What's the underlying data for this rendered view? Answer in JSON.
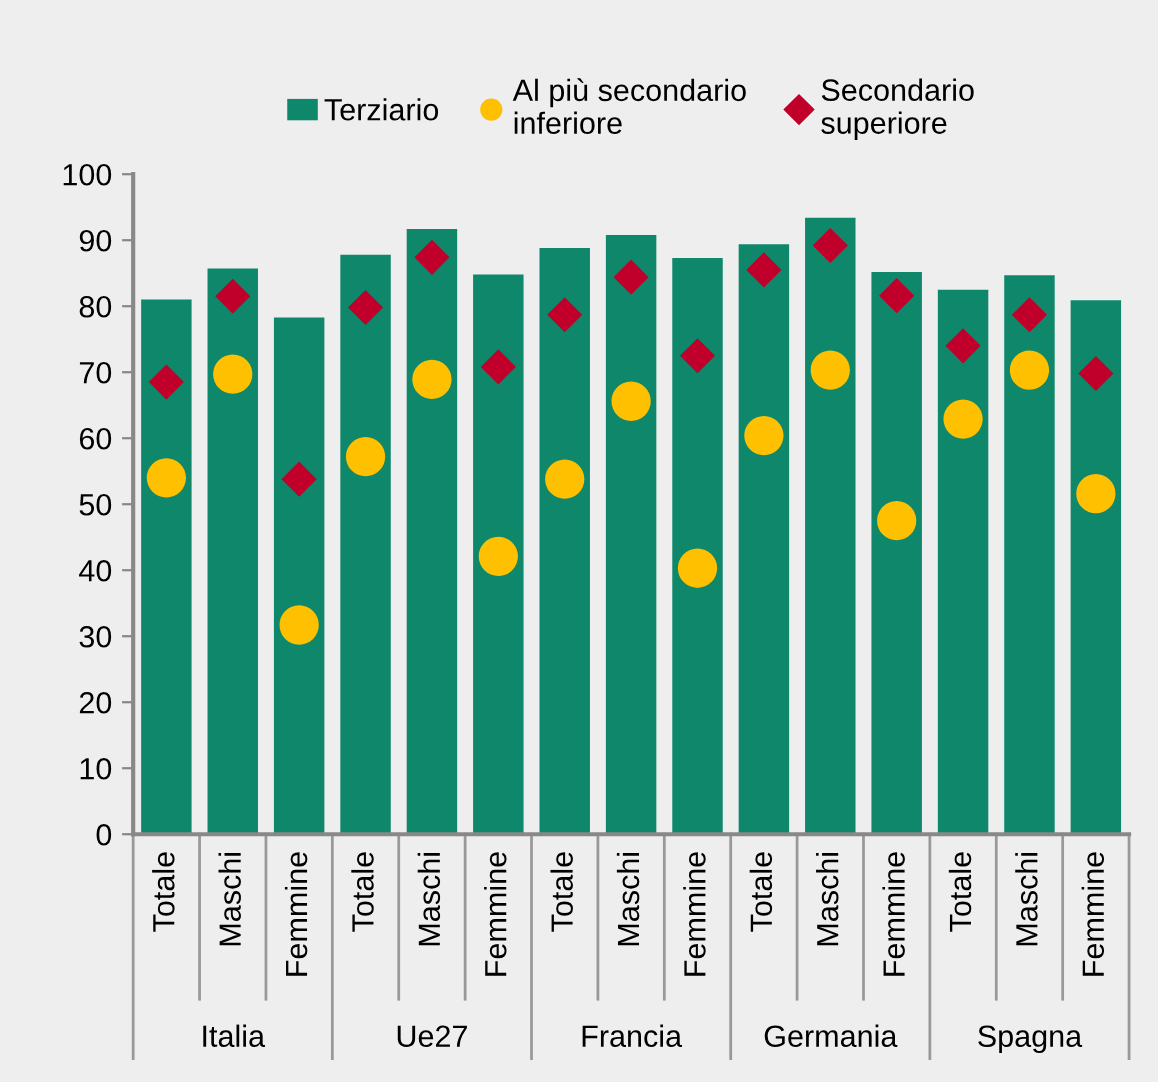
{
  "chart_data": {
    "type": "bar",
    "categories": [
      "Totale",
      "Maschi",
      "Femmine",
      "Totale",
      "Maschi",
      "Femmine",
      "Totale",
      "Maschi",
      "Femmine",
      "Totale",
      "Maschi",
      "Femmine",
      "Totale",
      "Maschi",
      "Femmine"
    ],
    "series": [
      {
        "name": "Terziario",
        "color": "#0f876b",
        "values": [
          81,
          85.7,
          78.3,
          87.8,
          91.7,
          84.8,
          88.8,
          90.8,
          87.3,
          89.4,
          93.4,
          85.2,
          82.5,
          84.7,
          80.9
        ]
      },
      {
        "name": "Al più secondario\ninferiore",
        "type": "scatter",
        "marker": "circle",
        "color": "#ffc000",
        "values": [
          54,
          69.7,
          31.7,
          57.2,
          68.9,
          42.1,
          53.8,
          65.6,
          40.3,
          60.4,
          70.3,
          47.5,
          62.9,
          70.3,
          51.6
        ]
      },
      {
        "name": "Secondario\nsuperiore",
        "type": "scatter",
        "marker": "diamond",
        "color": "#c0002a",
        "values": [
          68.5,
          81.5,
          53.8,
          79.8,
          87.4,
          70.8,
          78.7,
          84.4,
          72.5,
          85.5,
          89.2,
          81.6,
          74,
          78.7,
          69.8
        ]
      }
    ],
    "annotations": [
      "Italia",
      "Ue27",
      "Francia",
      "Germania",
      "Spagna"
    ],
    "ylim": [
      0,
      100
    ],
    "yticks": [
      0,
      10,
      20,
      30,
      40,
      50,
      60,
      70,
      80,
      90,
      100
    ],
    "grid": false,
    "legend": "top"
  }
}
